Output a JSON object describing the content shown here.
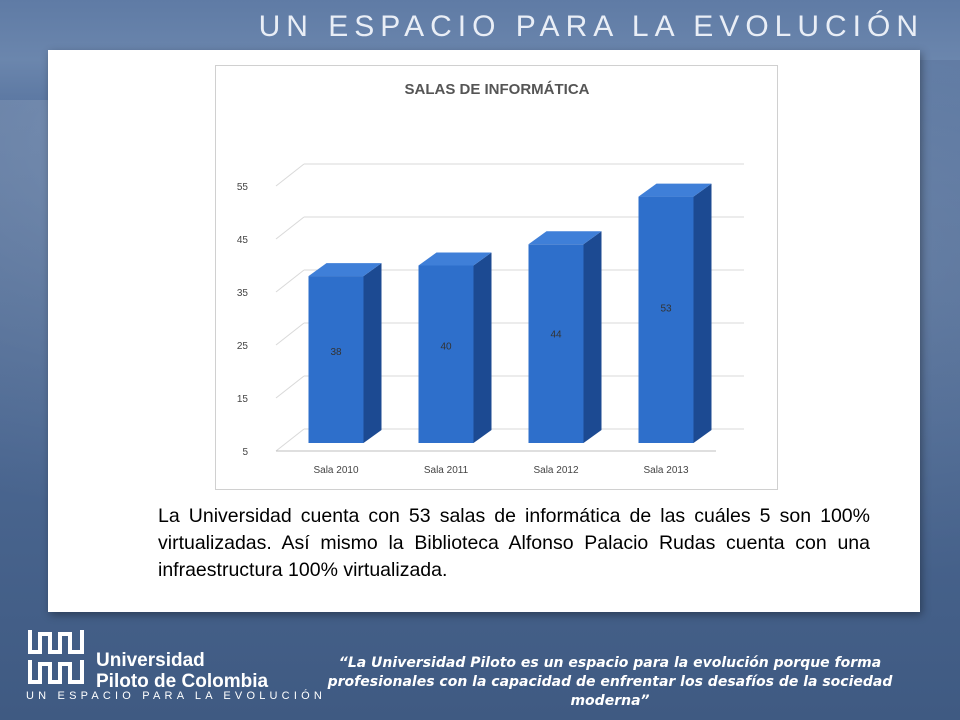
{
  "header": {
    "title": "UN ESPACIO PARA LA EVOLUCIÓN"
  },
  "chart_data": {
    "type": "bar",
    "title": "SALAS DE INFORMÁTICA",
    "categories": [
      "Sala 2010",
      "Sala 2011",
      "Sala 2012",
      "Sala 2013"
    ],
    "values": [
      38,
      40,
      44,
      53
    ],
    "data_labels": [
      "38",
      "40",
      "44",
      "53"
    ],
    "yticks": [
      "5",
      "15",
      "25",
      "35",
      "45",
      "55"
    ],
    "ylim": [
      5,
      55
    ],
    "xlabel": "",
    "ylabel": "",
    "grid": true,
    "style": "3d-column",
    "bar_color": "#2e6fcb"
  },
  "body": {
    "text": "La Universidad cuenta con 53 salas de informática de las cuáles 5 son 100% virtualizadas. Así mismo la Biblioteca Alfonso Palacio Rudas cuenta con una infraestructura 100% virtualizada."
  },
  "footer": {
    "university_line1": "Universidad",
    "university_line2": "Piloto de Colombia",
    "tagline": "UN ESPACIO PARA LA EVOLUCIÓN",
    "quote": "“La Universidad Piloto es un espacio para la evolución porque forma profesionales con la capacidad de enfrentar los desafíos de la sociedad moderna”"
  }
}
